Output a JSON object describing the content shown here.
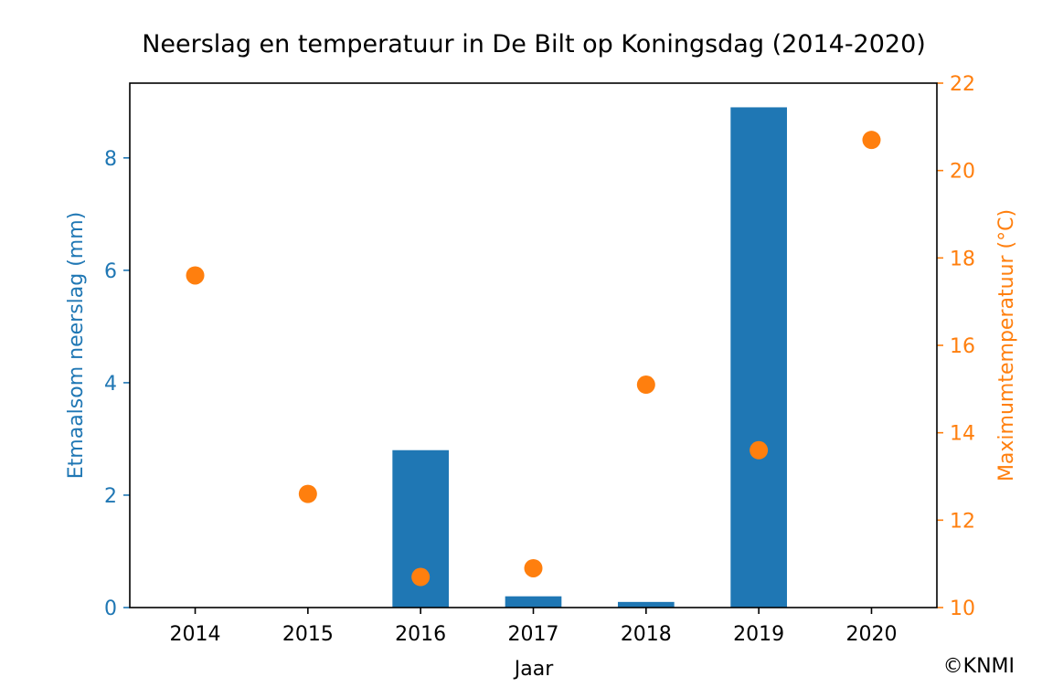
{
  "chart_data": {
    "type": "bar",
    "title": "Neerslag en temperatuur in De Bilt op Koningsdag (2014-2020)",
    "xlabel": "Jaar",
    "ylabel": "Etmaalsom neerslag (mm)",
    "y2label": "Maximumtemperatuur (°C)",
    "categories": [
      "2014",
      "2015",
      "2016",
      "2017",
      "2018",
      "2019",
      "2020"
    ],
    "series": [
      {
        "type": "bar",
        "axis": "left",
        "color": "#1f77b4",
        "values": [
          0,
          0,
          2.8,
          0.2,
          0.1,
          8.9,
          0
        ]
      },
      {
        "type": "scatter",
        "axis": "right",
        "color": "#ff7f0e",
        "values": [
          17.6,
          12.6,
          10.7,
          10.9,
          15.1,
          13.6,
          20.7
        ]
      }
    ],
    "ylim": [
      0,
      9.33
    ],
    "yticks": [
      0,
      2,
      4,
      6,
      8
    ],
    "y2lim": [
      10,
      22
    ],
    "y2ticks": [
      10,
      12,
      14,
      16,
      18,
      20,
      22
    ],
    "grid": false,
    "left_axis_color": "#1f77b4",
    "right_axis_color": "#ff7f0e"
  },
  "credit": "©KNMI"
}
